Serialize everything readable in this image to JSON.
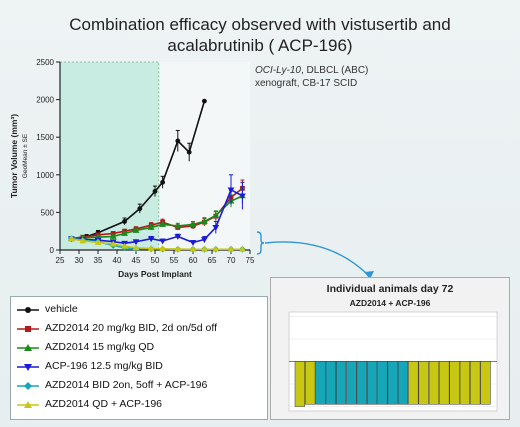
{
  "title": {
    "line1": "Combination efficacy observed with vistusertib and",
    "line2": "acalabrutinib ( ACP-196)"
  },
  "xenograft": {
    "model": "OCI-Ly-10",
    "model_suffix": ", DLBCL (ABC)",
    "line2": "xenograft, CB-17 SCID"
  },
  "chart_data": [
    {
      "type": "line",
      "ylabel": "Tumor Volume (mm³)",
      "ylabel_sub": "GeoMean ± SE",
      "xlabel": "Days Post Implant",
      "xlim": [
        25,
        75
      ],
      "ylim": [
        0,
        2500
      ],
      "x_ticks": [
        25,
        30,
        35,
        40,
        45,
        50,
        55,
        60,
        65,
        70,
        75
      ],
      "y_ticks": [
        0,
        500,
        1000,
        1500,
        2000,
        2500
      ],
      "dosing_period": [
        25,
        51
      ],
      "dosing_color": "#c9ece2",
      "series": [
        {
          "name": "vehicle",
          "color": "#111111",
          "marker": "circle",
          "x": [
            28,
            32,
            35,
            42,
            46,
            50,
            52,
            56,
            59,
            63
          ],
          "y": [
            150,
            180,
            230,
            380,
            550,
            780,
            900,
            1450,
            1300,
            1980
          ],
          "err": [
            20,
            25,
            30,
            45,
            60,
            70,
            80,
            140,
            120,
            0
          ]
        },
        {
          "name": "AZD2014 20 mg/kg BID, 2d on/5d off",
          "color": "#b01c1c",
          "marker": "square",
          "x": [
            28,
            31,
            35,
            39,
            42,
            45,
            49,
            52,
            56,
            60,
            63,
            66,
            70,
            73
          ],
          "y": [
            150,
            170,
            200,
            220,
            250,
            280,
            330,
            370,
            300,
            320,
            370,
            450,
            700,
            820
          ],
          "err": [
            15,
            20,
            20,
            25,
            25,
            30,
            35,
            40,
            35,
            40,
            50,
            60,
            90,
            110
          ]
        },
        {
          "name": "AZD2014 15 mg/kg QD",
          "color": "#1a8a1a",
          "marker": "triangle",
          "x": [
            28,
            31,
            35,
            39,
            42,
            45,
            49,
            52,
            56,
            60,
            63,
            66,
            70,
            73
          ],
          "y": [
            150,
            160,
            170,
            180,
            220,
            260,
            300,
            340,
            320,
            340,
            380,
            460,
            650,
            720
          ],
          "err": [
            15,
            15,
            20,
            20,
            25,
            30,
            35,
            35,
            35,
            40,
            50,
            60,
            80,
            100
          ]
        },
        {
          "name": "ACP-196 12.5 mg/kg  BID",
          "color": "#1a1ad8",
          "marker": "triangle-down",
          "x": [
            28,
            31,
            35,
            39,
            42,
            45,
            49,
            52,
            56,
            60,
            63,
            66,
            70,
            73
          ],
          "y": [
            150,
            140,
            130,
            110,
            90,
            110,
            150,
            120,
            180,
            100,
            140,
            300,
            800,
            720
          ],
          "err": [
            15,
            15,
            20,
            20,
            20,
            25,
            30,
            25,
            30,
            25,
            40,
            80,
            200,
            180
          ]
        },
        {
          "name": "AZD2014 BID 2on, 5off + ACP-196",
          "color": "#17a6b8",
          "marker": "diamond",
          "x": [
            28,
            31,
            35,
            39,
            42,
            45,
            49,
            52,
            56,
            60,
            63,
            66,
            70,
            73
          ],
          "y": [
            150,
            130,
            110,
            60,
            30,
            20,
            15,
            12,
            10,
            10,
            10,
            10,
            10,
            10
          ],
          "err": [
            15,
            15,
            15,
            10,
            8,
            5,
            5,
            4,
            3,
            3,
            3,
            3,
            3,
            3
          ]
        },
        {
          "name": "AZD2014 QD + ACP-196",
          "color": "#c8c814",
          "marker": "triangle",
          "x": [
            28,
            31,
            35,
            39,
            42,
            45,
            49,
            52,
            56,
            60,
            63,
            66,
            70,
            73
          ],
          "y": [
            150,
            120,
            100,
            80,
            50,
            30,
            20,
            15,
            12,
            10,
            10,
            10,
            10,
            10
          ],
          "err": [
            15,
            15,
            15,
            12,
            10,
            6,
            5,
            4,
            3,
            3,
            3,
            3,
            3,
            3
          ]
        }
      ]
    },
    {
      "type": "bar",
      "title": "Individual animals day 72",
      "subtitle": "AZD2014 + ACP-196",
      "ylim": [
        -110,
        110
      ],
      "values": [
        -100,
        -95,
        -95,
        -95,
        -95,
        -95,
        -95,
        -95,
        -95,
        -95,
        -95,
        -95,
        -95,
        -95,
        -95,
        -95,
        -95,
        -95,
        -95
      ],
      "bar_colors": [
        "#c8c814",
        "#c8c814",
        "#17a6b8",
        "#17a6b8",
        "#17a6b8",
        "#17a6b8",
        "#17a6b8",
        "#17a6b8",
        "#17a6b8",
        "#17a6b8",
        "#17a6b8",
        "#c8c814",
        "#c8c814",
        "#c8c814",
        "#c8c814",
        "#c8c814",
        "#c8c814",
        "#c8c814",
        "#c8c814"
      ]
    }
  ]
}
